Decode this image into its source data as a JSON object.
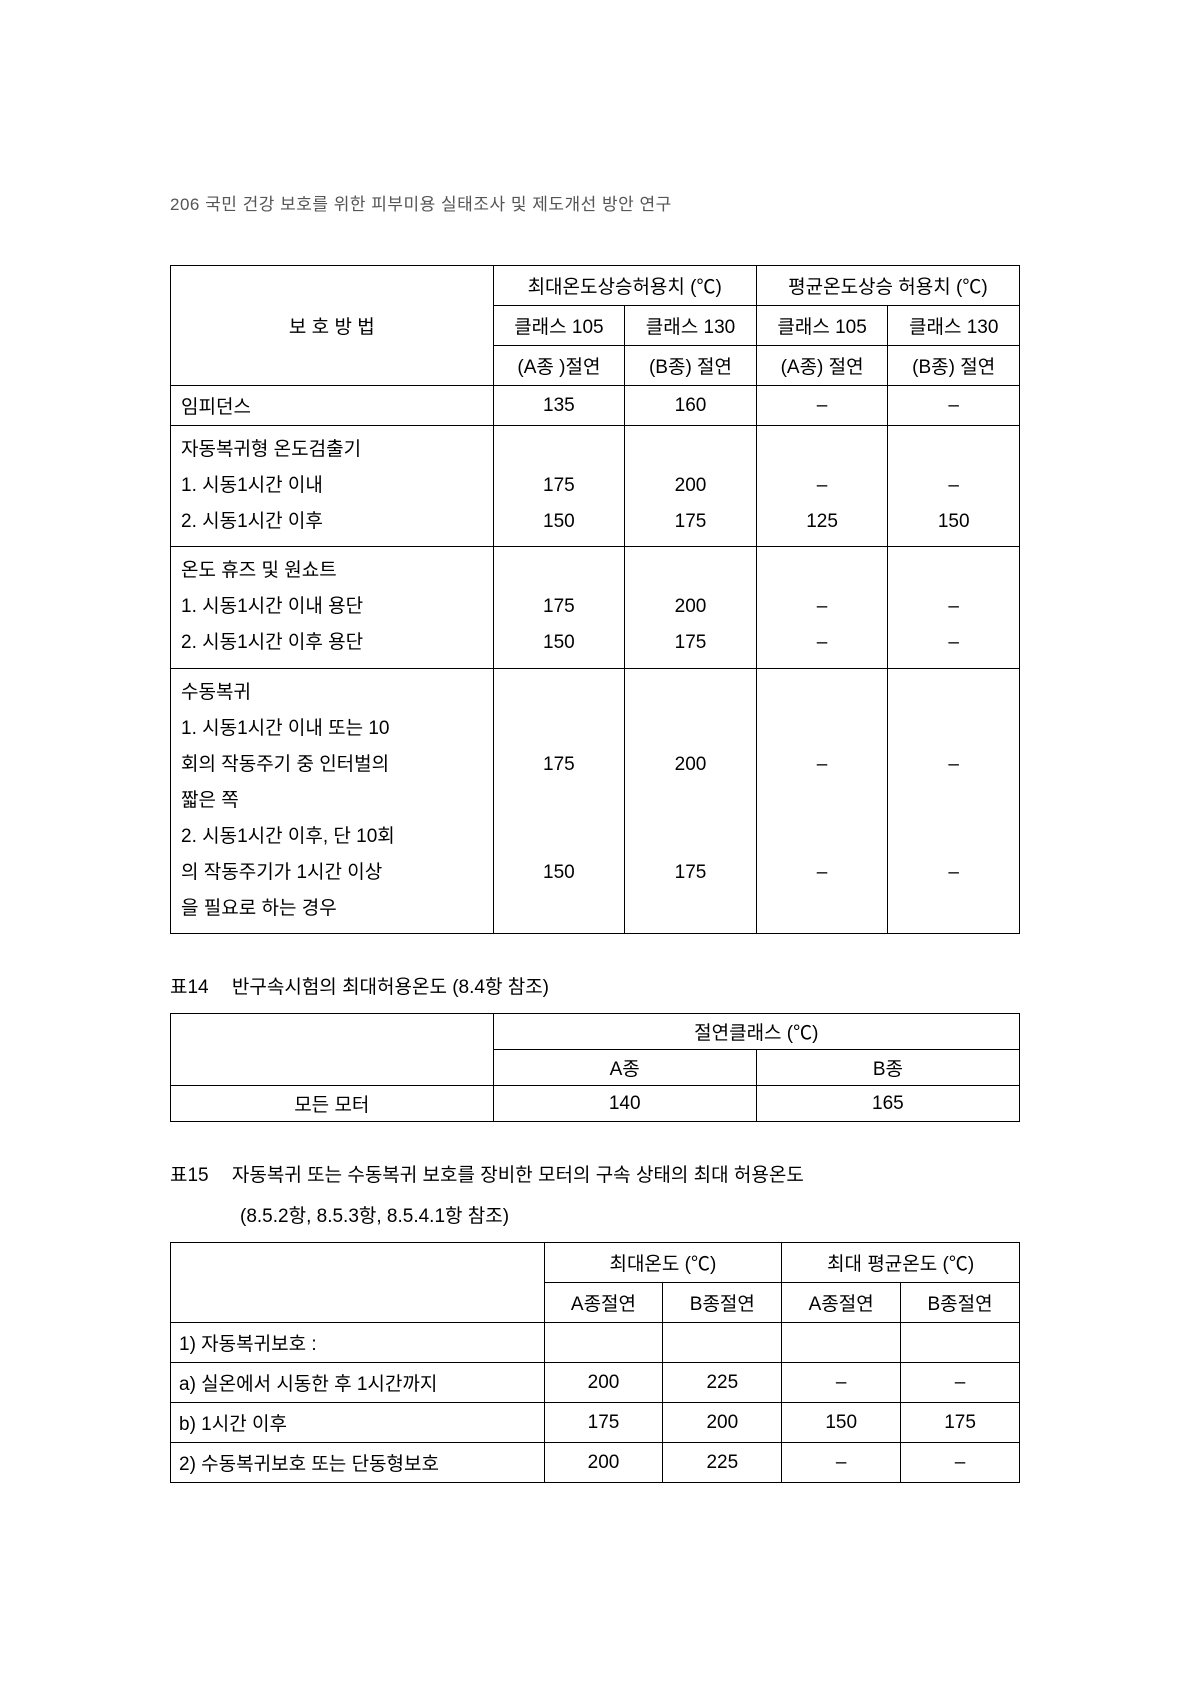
{
  "header": {
    "page_num": "206",
    "title": "국민 건강 보호를 위한 피부미용 실태조사 및 제도개선 방안 연구"
  },
  "table13": {
    "col_method": "보 호 방 법",
    "head_max": "최대온도상승허용치 (℃)",
    "head_avg": "평균온도상승 허용치 (℃)",
    "cls105": "클래스 105",
    "cls130": "클래스 130",
    "a_ins": "(A종 )절연",
    "b_ins": "(B종) 절연",
    "a_ins2": "(A종) 절연",
    "b_ins2": "(B종) 절연",
    "rows": {
      "r1": {
        "label": "임피던스",
        "c1": "135",
        "c2": "160",
        "c3": "–",
        "c4": "–"
      },
      "r2": {
        "label": "자동복귀형 온도검출기",
        "s1": "1. 시동1시간 이내",
        "s2": "2. 시동1시간 이후",
        "a1": "175",
        "b1": "200",
        "c1": "–",
        "d1": "–",
        "a2": "150",
        "b2": "175",
        "c2": "125",
        "d2": "150"
      },
      "r3": {
        "label": "온도 휴즈 및 원쇼트",
        "s1": "1. 시동1시간 이내 용단",
        "s2": "2. 시동1시간 이후 용단",
        "a1": "175",
        "b1": "200",
        "c1": "–",
        "d1": "–",
        "a2": "150",
        "b2": "175",
        "c2": "–",
        "d2": "–"
      },
      "r4": {
        "label": "수동복귀",
        "s1a": "1. 시동1시간 이내 또는 10",
        "s1b": "회의 작동주기 중 인터벌의",
        "s1c": "짧은 쪽",
        "s2a": "2. 시동1시간 이후, 단 10회",
        "s2b": "의 작동주기가 1시간 이상",
        "s2c": "을 필요로 하는 경우",
        "a1": "175",
        "b1": "200",
        "c1": "–",
        "d1": "–",
        "a2": "150",
        "b2": "175",
        "c2": "–",
        "d2": "–"
      }
    }
  },
  "table14": {
    "caption_num": "표14",
    "caption_text": "반구속시험의 최대허용온도   (8.4항 참조)",
    "head_group": "절연클래스 (℃)",
    "col_a": "A종",
    "col_b": "B종",
    "row_label": "모든 모터",
    "val_a": "140",
    "val_b": "165"
  },
  "table15": {
    "caption_num": "표15",
    "caption_text": "자동복귀 또는 수동복귀 보호를 장비한 모터의 구속 상태의 최대 허용온도",
    "caption_sub": "(8.5.2항, 8.5.3항, 8.5.4.1항 참조)",
    "head_max": "최대온도 (℃)",
    "head_avg": "최대 평균온도 (℃)",
    "a_ins": "A종절연",
    "b_ins": "B종절연",
    "r1_label": "1) 자동복귀보호 :",
    "r1a_label": "a) 실온에서 시동한 후 1시간까지",
    "r1a": {
      "c1": "200",
      "c2": "225",
      "c3": "–",
      "c4": "–"
    },
    "r1b_label": "b) 1시간 이후",
    "r1b": {
      "c1": "175",
      "c2": "200",
      "c3": "150",
      "c4": "175"
    },
    "r2_label": "2) 수동복귀보호 또는 단동형보호",
    "r2": {
      "c1": "200",
      "c2": "225",
      "c3": "–",
      "c4": "–"
    }
  }
}
